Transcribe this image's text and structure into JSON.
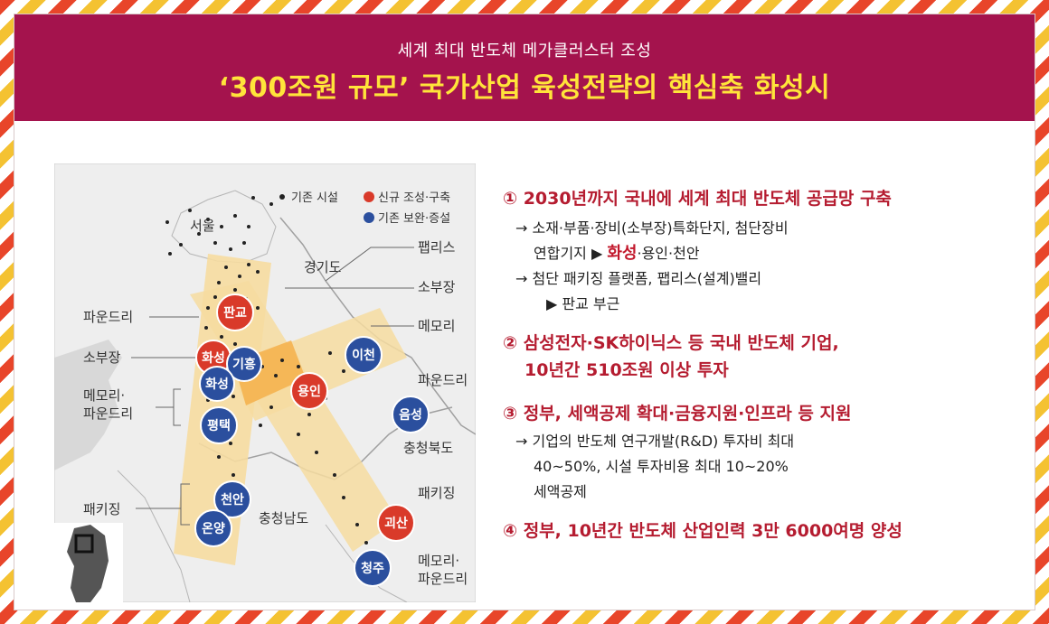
{
  "header": {
    "subtitle": "세계 최대 반도체 메가클러스터 조성",
    "title": "‘300조원 규모’ 국가산업 육성전략의 핵심축 화성시"
  },
  "map": {
    "legend": {
      "existing": "기존 시설",
      "new": "신규 조성·구축",
      "reinforce": "기존 보완·증설"
    },
    "regions": {
      "seoul": "서울",
      "gyeonggi": "경기도",
      "chungbuk": "충청북도",
      "chungnam": "충청남도"
    },
    "side_labels": {
      "foundry_left": "파운드리",
      "sobujang_left": "소부장",
      "memory_foundry_left_1": "메모리·",
      "memory_foundry_left_2": "파운드리",
      "packaging_left": "패키징",
      "fabless": "팹리스",
      "sobujang_right": "소부장",
      "memory_right": "메모리",
      "foundry_right": "파운드리",
      "packaging_right": "패키징",
      "memory_foundry_right_1": "메모리·",
      "memory_foundry_right_2": "파운드리"
    },
    "cities": {
      "pangyo": "판교",
      "hwaseong_new": "화성",
      "giheung": "기흥",
      "hwaseong": "화성",
      "pyeongtaek": "평택",
      "yongin": "용인",
      "icheon": "이천",
      "eumseong": "음성",
      "cheonan": "천안",
      "onyang": "온양",
      "goesan": "괴산",
      "cheongju": "청주"
    },
    "colors": {
      "new": "#d93a2a",
      "reinforce": "#2b4f9e",
      "band": "#f6dca0",
      "overlap": "#f5b04a"
    }
  },
  "points": [
    {
      "title": "① 2030년까지 국내에 세계 최대 반도체 공급망 구축"
    },
    {
      "l1": "→ 소재·부품·장비(소부장)특화단지, 첨단장비",
      "l2a": "연합기지 ▶ ",
      "l2b": "화성",
      "l2c": "·용인·천안",
      "l3": "→  첨단 패키징 플랫폼, 팹리스(설계)밸리",
      "l4": "▶ 판교 부근"
    },
    {
      "title1": "② 삼성전자·SK하이닉스 등 국내 반도체 기업,",
      "title2": "10년간 510조원 이상 투자"
    },
    {
      "title": "③ 정부, 세액공제 확대·금융지원·인프라 등 지원",
      "l1": "→ 기업의 반도체 연구개발(R&D) 투자비 최대",
      "l2": "40~50%, 시설 투자비용 최대 10~20%",
      "l3": "세액공제"
    },
    {
      "title": "④ 정부, 10년간 반도체 산업인력 3만 6000여명 양성"
    }
  ]
}
